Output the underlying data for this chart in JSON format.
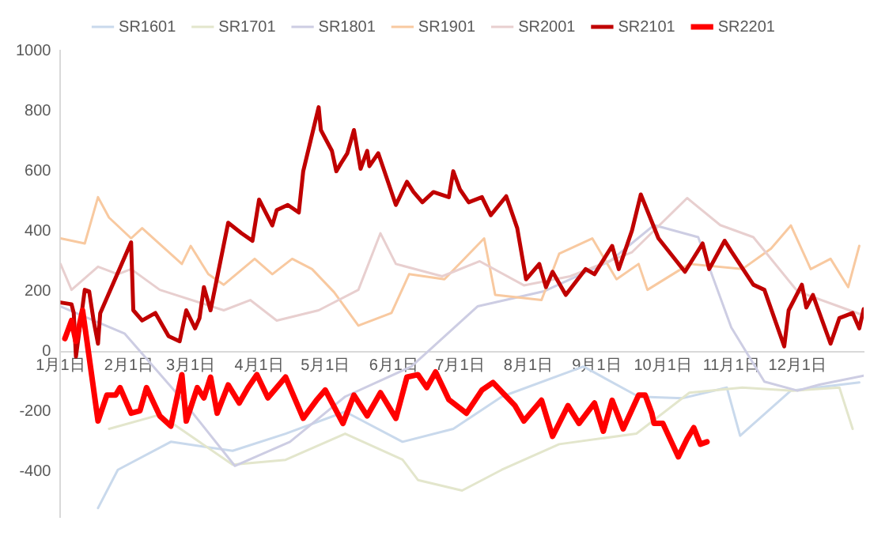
{
  "chart_data": {
    "type": "line",
    "xlim": [
      "--01-01",
      "--12-31"
    ],
    "xticks": [
      {
        "value": "--01-01",
        "label": "1月1日"
      },
      {
        "value": "--02-01",
        "label": "2月1日"
      },
      {
        "value": "--03-01",
        "label": "3月1日"
      },
      {
        "value": "--04-01",
        "label": "4月1日"
      },
      {
        "value": "--05-01",
        "label": "5月1日"
      },
      {
        "value": "--06-01",
        "label": "6月1日"
      },
      {
        "value": "--07-01",
        "label": "7月1日"
      },
      {
        "value": "--08-01",
        "label": "8月1日"
      },
      {
        "value": "--09-01",
        "label": "9月1日"
      },
      {
        "value": "--10-01",
        "label": "10月1日"
      },
      {
        "value": "--11-01",
        "label": "11月1日"
      },
      {
        "value": "--12-01",
        "label": "12月1日"
      }
    ],
    "ylim": [
      -550,
      1000
    ],
    "yticks": [
      -400,
      -200,
      0,
      200,
      400,
      600,
      800,
      1000
    ],
    "grid": false,
    "legend": "top",
    "marker": "none",
    "line_style": "solid",
    "series": [
      {
        "name": "SR1601",
        "color": "#c9d9ec",
        "x": [
          "--01-18",
          "--01-27",
          "--02-20",
          "--03-20",
          "--04-13",
          "--05-10",
          "--06-05",
          "--06-28",
          "--07-20",
          "--08-26",
          "--09-20",
          "--10-10",
          "--10-30",
          "--11-05",
          "--11-28",
          "--12-29"
        ],
        "values": [
          -520,
          -393,
          -300,
          -330,
          -273,
          -200,
          -300,
          -257,
          -150,
          -50,
          -150,
          -155,
          -120,
          -280,
          -130,
          -103
        ]
      },
      {
        "name": "SR1701",
        "color": "#e3e6cc",
        "x": [
          "--01-23",
          "--02-15",
          "--03-20",
          "--04-13",
          "--05-10",
          "--06-05",
          "--06-12",
          "--07-02",
          "--07-20",
          "--08-15",
          "--09-19",
          "--10-13",
          "--11-06",
          "--11-29",
          "--12-20",
          "--12-26"
        ],
        "values": [
          -257,
          -210,
          -376,
          -360,
          -273,
          -359,
          -427,
          -462,
          -393,
          -308,
          -273,
          -137,
          -120,
          -130,
          -120,
          -257
        ]
      },
      {
        "name": "SR1801",
        "color": "#cdcde3",
        "x": [
          "--01-01",
          "--01-30",
          "--02-24",
          "--03-21",
          "--04-15",
          "--05-10",
          "--06-09",
          "--07-09",
          "--08-08",
          "--09-07",
          "--09-27",
          "--10-17",
          "--11-01",
          "--11-16",
          "--12-01",
          "--12-11",
          "--12-31"
        ],
        "values": [
          150,
          60,
          -150,
          -380,
          -300,
          -150,
          -50,
          150,
          200,
          300,
          420,
          380,
          80,
          -100,
          -130,
          -110,
          -80
        ]
      },
      {
        "name": "SR1901",
        "color": "#f8c9a0",
        "x": [
          "--01-01",
          "--01-12",
          "--01-18",
          "--01-23",
          "--02-02",
          "--02-07",
          "--02-25",
          "--03-01",
          "--03-09",
          "--03-16",
          "--03-30",
          "--04-07",
          "--04-16",
          "--04-25",
          "--05-05",
          "--05-16",
          "--05-31",
          "--06-08",
          "--06-24",
          "--07-12",
          "--07-17",
          "--08-07",
          "--08-15",
          "--08-30",
          "--09-10",
          "--09-20",
          "--09-24",
          "--10-13",
          "--11-06",
          "--11-19",
          "--11-28",
          "--12-07",
          "--12-16",
          "--12-24",
          "--12-29"
        ],
        "values": [
          376,
          359,
          513,
          445,
          376,
          410,
          291,
          351,
          257,
          222,
          308,
          257,
          308,
          274,
          197,
          86,
          128,
          257,
          240,
          376,
          188,
          171,
          325,
          376,
          240,
          291,
          205,
          291,
          274,
          342,
          419,
          274,
          308,
          214,
          351
        ]
      },
      {
        "name": "SR2001",
        "color": "#e8cfcf",
        "x": [
          "--01-01",
          "--01-06",
          "--01-18",
          "--01-27",
          "--02-02",
          "--02-15",
          "--03-16",
          "--03-28",
          "--04-09",
          "--04-28",
          "--05-16",
          "--05-26",
          "--06-02",
          "--06-23",
          "--07-10",
          "--07-30",
          "--08-20",
          "--09-17",
          "--10-12",
          "--10-27",
          "--11-11",
          "--12-01",
          "--12-31"
        ],
        "values": [
          291,
          205,
          282,
          257,
          274,
          205,
          137,
          171,
          103,
          137,
          205,
          393,
          291,
          250,
          300,
          220,
          250,
          330,
          510,
          420,
          380,
          200,
          120
        ]
      },
      {
        "name": "SR2101",
        "color": "#c00000",
        "x": [
          "--01-01",
          "--01-06",
          "--01-07",
          "--01-08",
          "--01-12",
          "--01-14",
          "--01-16",
          "--01-18",
          "--01-19",
          "--02-02",
          "--02-03",
          "--02-07",
          "--02-13",
          "--02-19",
          "--02-24",
          "--02-27",
          "--03-03",
          "--03-05",
          "--03-07",
          "--03-10",
          "--03-18",
          "--03-24",
          "--03-29",
          "--04-01",
          "--04-04",
          "--04-07",
          "--04-09",
          "--04-14",
          "--04-19",
          "--04-21",
          "--04-28",
          "--04-29",
          "--05-04",
          "--05-06",
          "--05-08",
          "--05-11",
          "--05-14",
          "--05-15",
          "--05-17",
          "--05-20",
          "--05-21",
          "--05-25",
          "--05-29",
          "--06-02",
          "--06-07",
          "--06-10",
          "--06-14",
          "--06-19",
          "--06-26",
          "--06-28",
          "--07-01",
          "--07-05",
          "--07-11",
          "--07-15",
          "--07-22",
          "--07-27",
          "--07-31",
          "--08-06",
          "--08-09",
          "--08-12",
          "--08-18",
          "--08-27",
          "--08-31",
          "--09-08",
          "--09-11",
          "--09-17",
          "--09-21",
          "--09-29",
          "--10-11",
          "--10-19",
          "--10-22",
          "--10-29",
          "--11-01",
          "--11-11",
          "--11-16",
          "--11-25",
          "--11-27",
          "--12-03",
          "--12-05",
          "--12-08",
          "--12-16",
          "--12-20",
          "--12-26",
          "--12-29",
          "--12-31"
        ],
        "values": [
          163,
          157,
          128,
          -17,
          205,
          200,
          103,
          26,
          127,
          363,
          137,
          103,
          128,
          51,
          34,
          137,
          77,
          111,
          214,
          137,
          428,
          393,
          368,
          505,
          462,
          419,
          470,
          487,
          462,
          599,
          812,
          736,
          667,
          599,
          624,
          659,
          736,
          693,
          607,
          667,
          616,
          659,
          573,
          487,
          564,
          530,
          496,
          530,
          513,
          599,
          539,
          496,
          513,
          453,
          516,
          410,
          240,
          291,
          214,
          265,
          188,
          274,
          257,
          351,
          274,
          402,
          522,
          376,
          265,
          359,
          274,
          368,
          333,
          222,
          205,
          17,
          137,
          222,
          146,
          188,
          26,
          111,
          128,
          77,
          141
        ]
      },
      {
        "name": "SR2201",
        "color": "#ff0000",
        "x": [
          "--01-03",
          "--01-06",
          "--01-08",
          "--01-11",
          "--01-13",
          "--01-18",
          "--01-22",
          "--01-26",
          "--01-28",
          "--02-02",
          "--02-06",
          "--02-09",
          "--02-15",
          "--02-20",
          "--02-25",
          "--02-27",
          "--03-04",
          "--03-07",
          "--03-10",
          "--03-13",
          "--03-18",
          "--03-23",
          "--03-27",
          "--03-31",
          "--04-05",
          "--04-13",
          "--04-21",
          "--04-27",
          "--05-01",
          "--05-09",
          "--05-14",
          "--05-20",
          "--05-26",
          "--06-02",
          "--06-07",
          "--06-12",
          "--06-16",
          "--06-20",
          "--06-26",
          "--07-01",
          "--07-04",
          "--07-11",
          "--07-16",
          "--07-26",
          "--07-30",
          "--08-07",
          "--08-12",
          "--08-19",
          "--08-24",
          "--08-31",
          "--09-04",
          "--09-08",
          "--09-13",
          "--09-20",
          "--09-23",
          "--09-26",
          "--09-27",
          "--10-01",
          "--10-08",
          "--10-12",
          "--10-15",
          "--10-18",
          "--10-21"
        ],
        "values": [
          43,
          103,
          34,
          137,
          34,
          -231,
          -145,
          -145,
          -120,
          -205,
          -197,
          -120,
          -214,
          -248,
          -77,
          -231,
          -120,
          -154,
          -85,
          -205,
          -111,
          -171,
          -120,
          -77,
          -154,
          -85,
          -222,
          -162,
          -128,
          -239,
          -145,
          -214,
          -137,
          -222,
          -85,
          -77,
          -120,
          -68,
          -160,
          -188,
          -205,
          -128,
          -103,
          -180,
          -231,
          -162,
          -282,
          -180,
          -239,
          -171,
          -265,
          -162,
          -257,
          -145,
          -145,
          -205,
          -239,
          -239,
          -350,
          -290,
          -253,
          -308,
          -300
        ]
      }
    ]
  }
}
